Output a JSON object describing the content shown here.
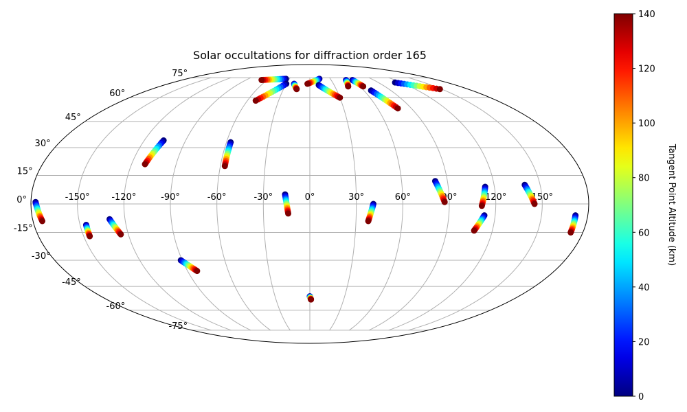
{
  "chart_data": {
    "type": "scatter",
    "projection": "mollweide",
    "title": "Solar occultations for diffraction order 165",
    "xlabel": "",
    "ylabel": "",
    "grid": true,
    "longitude_ticks": [
      "-150°",
      "-120°",
      "-90°",
      "-60°",
      "-30°",
      "0°",
      "30°",
      "60°",
      "90°",
      "120°",
      "150°"
    ],
    "latitude_ticks": [
      "-75°",
      "-60°",
      "-45°",
      "-30°",
      "-15°",
      "0°",
      "15°",
      "30°",
      "45°",
      "60°",
      "75°"
    ],
    "colorbar": {
      "label": "Tangent Point Altitude (km)",
      "colormap": "jet",
      "range": [
        0,
        140
      ],
      "ticks": [
        "0",
        "20",
        "40",
        "60",
        "80",
        "100",
        "120",
        "140"
      ]
    },
    "series": [
      {
        "lon": [
          -177,
          -174
        ],
        "lat": [
          1,
          -9
        ],
        "alt": [
          0,
          140
        ]
      },
      {
        "lon": [
          -146,
          -146
        ],
        "lat": [
          -11,
          -17
        ],
        "alt": [
          0,
          140
        ]
      },
      {
        "lon": [
          -130,
          -125
        ],
        "lat": [
          -8,
          -16
        ],
        "alt": [
          0,
          140
        ]
      },
      {
        "lon": [
          -106,
          -111
        ],
        "lat": [
          34,
          21
        ],
        "alt": [
          0,
          140
        ]
      },
      {
        "lon": [
          -91,
          -83
        ],
        "lat": [
          -30,
          -36
        ],
        "alt": [
          0,
          140
        ]
      },
      {
        "lon": [
          -57,
          -57
        ],
        "lat": [
          33,
          20
        ],
        "alt": [
          0,
          140
        ]
      },
      {
        "lon": [
          -35,
          -68
        ],
        "lat": [
          74,
          73
        ],
        "alt": [
          0,
          140
        ]
      },
      {
        "lon": [
          -30,
          -52
        ],
        "lat": [
          70,
          58
        ],
        "alt": [
          0,
          140
        ]
      },
      {
        "lon": [
          -20,
          -15
        ],
        "lat": [
          70,
          66
        ],
        "alt": [
          0,
          140
        ]
      },
      {
        "lon": [
          -16,
          -14
        ],
        "lat": [
          5,
          -5
        ],
        "alt": [
          0,
          140
        ]
      },
      {
        "lon": [
          14,
          -3
        ],
        "lat": [
          74,
          70
        ],
        "alt": [
          0,
          140
        ]
      },
      {
        "lon": [
          11,
          30
        ],
        "lat": [
          69,
          60
        ],
        "alt": [
          0,
          140
        ]
      },
      {
        "lon": [
          0,
          1
        ],
        "lat": [
          -51,
          -53
        ],
        "alt": [
          0,
          140
        ]
      },
      {
        "lon": [
          41,
          38
        ],
        "lat": [
          0,
          -9
        ],
        "alt": [
          0,
          140
        ]
      },
      {
        "lon": [
          51,
          46
        ],
        "lat": [
          73,
          68
        ],
        "alt": [
          0,
          140
        ]
      },
      {
        "lon": [
          60,
          64
        ],
        "lat": [
          73,
          68
        ],
        "alt": [
          0,
          140
        ]
      },
      {
        "lon": [
          68,
          78
        ],
        "lat": [
          65,
          53
        ],
        "alt": [
          0,
          140
        ]
      },
      {
        "lon": [
          112,
          148
        ],
        "lat": [
          71,
          66
        ],
        "alt": [
          0,
          140
        ]
      },
      {
        "lon": [
          82,
          87
        ],
        "lat": [
          12,
          1
        ],
        "alt": [
          0,
          140
        ]
      },
      {
        "lon": [
          113,
          108
        ],
        "lat": [
          -6,
          -14
        ],
        "alt": [
          0,
          140
        ]
      },
      {
        "lon": [
          114,
          111
        ],
        "lat": [
          9,
          -1
        ],
        "alt": [
          0,
          140
        ]
      },
      {
        "lon": [
          140,
          145
        ],
        "lat": [
          10,
          0
        ],
        "alt": [
          0,
          140
        ]
      },
      {
        "lon": [
          172,
          172
        ],
        "lat": [
          -6,
          -15
        ],
        "alt": [
          0,
          140
        ]
      }
    ]
  }
}
